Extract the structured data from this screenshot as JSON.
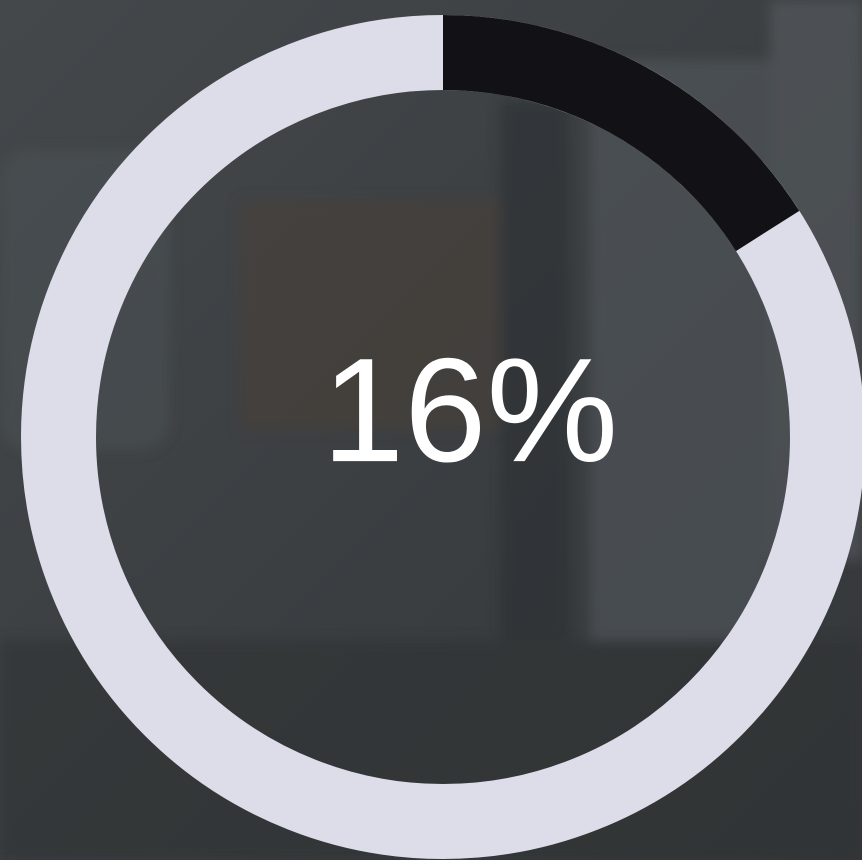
{
  "progress": {
    "value": 16,
    "label": "16%"
  }
}
